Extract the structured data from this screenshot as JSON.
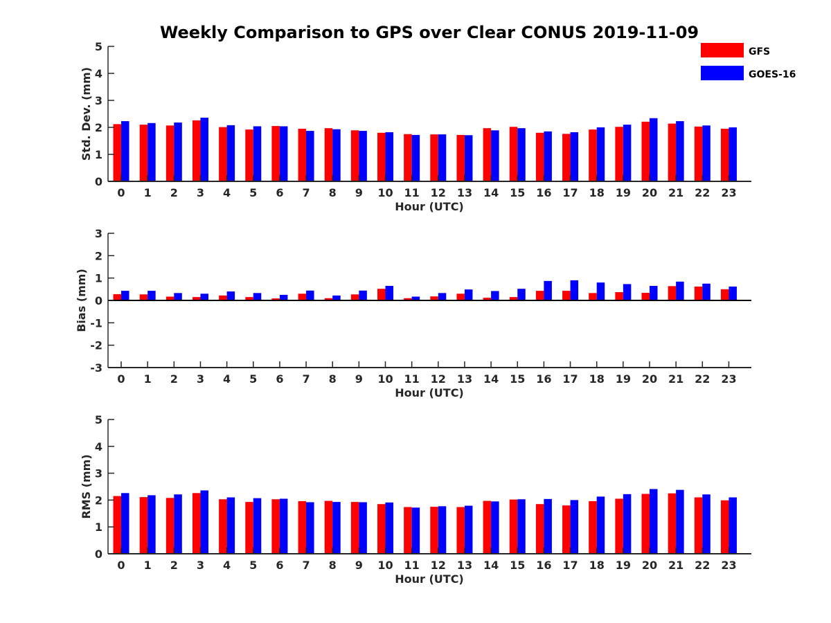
{
  "title": "Weekly Comparison to GPS over Clear CONUS 2019-11-09",
  "legend": [
    {
      "name": "GFS",
      "color": "#ff0000"
    },
    {
      "name": "GOES-16",
      "color": "#0000ff"
    }
  ],
  "chart_data": [
    {
      "type": "bar",
      "title": "Weekly Comparison to GPS over Clear CONUS 2019-11-09",
      "xlabel": "Hour (UTC)",
      "ylabel": "Std. Dev. (mm)",
      "ylim": [
        0,
        5
      ],
      "yticks": [
        0,
        1,
        2,
        3,
        4,
        5
      ],
      "categories": [
        "0",
        "1",
        "2",
        "3",
        "4",
        "5",
        "6",
        "7",
        "8",
        "9",
        "10",
        "11",
        "12",
        "13",
        "14",
        "15",
        "16",
        "17",
        "18",
        "19",
        "20",
        "21",
        "22",
        "23"
      ],
      "series": [
        {
          "name": "GFS",
          "color": "#ff0000",
          "values": [
            2.12,
            2.1,
            2.07,
            2.26,
            2.01,
            1.92,
            2.05,
            1.95,
            1.97,
            1.89,
            1.8,
            1.75,
            1.74,
            1.72,
            1.97,
            2.02,
            1.8,
            1.76,
            1.92,
            2.02,
            2.21,
            2.14,
            2.03,
            1.95
          ]
        },
        {
          "name": "GOES-16",
          "color": "#0000ff",
          "values": [
            2.23,
            2.16,
            2.18,
            2.36,
            2.08,
            2.04,
            2.04,
            1.87,
            1.93,
            1.87,
            1.82,
            1.72,
            1.74,
            1.71,
            1.89,
            1.97,
            1.85,
            1.82,
            2.0,
            2.1,
            2.34,
            2.23,
            2.07,
            2.0
          ]
        }
      ]
    },
    {
      "type": "bar",
      "title": "",
      "xlabel": "Hour (UTC)",
      "ylabel": "Bias (mm)",
      "ylim": [
        -3,
        3
      ],
      "yticks": [
        -3,
        -2,
        -1,
        0,
        1,
        2,
        3
      ],
      "categories": [
        "0",
        "1",
        "2",
        "3",
        "4",
        "5",
        "6",
        "7",
        "8",
        "9",
        "10",
        "11",
        "12",
        "13",
        "14",
        "15",
        "16",
        "17",
        "18",
        "19",
        "20",
        "21",
        "22",
        "23"
      ],
      "series": [
        {
          "name": "GFS",
          "color": "#ff0000",
          "values": [
            0.28,
            0.27,
            0.17,
            0.15,
            0.22,
            0.15,
            0.09,
            0.3,
            0.1,
            0.27,
            0.52,
            0.1,
            0.18,
            0.3,
            0.12,
            0.15,
            0.43,
            0.43,
            0.33,
            0.37,
            0.34,
            0.64,
            0.62,
            0.5
          ]
        },
        {
          "name": "GOES-16",
          "color": "#0000ff",
          "values": [
            0.43,
            0.43,
            0.33,
            0.3,
            0.4,
            0.33,
            0.25,
            0.44,
            0.22,
            0.44,
            0.65,
            0.17,
            0.33,
            0.49,
            0.42,
            0.52,
            0.87,
            0.9,
            0.8,
            0.73,
            0.65,
            0.84,
            0.75,
            0.62
          ]
        }
      ]
    },
    {
      "type": "bar",
      "title": "",
      "xlabel": "Hour (UTC)",
      "ylabel": "RMS (mm)",
      "ylim": [
        0,
        5
      ],
      "yticks": [
        0,
        1,
        2,
        3,
        4,
        5
      ],
      "categories": [
        "0",
        "1",
        "2",
        "3",
        "4",
        "5",
        "6",
        "7",
        "8",
        "9",
        "10",
        "11",
        "12",
        "13",
        "14",
        "15",
        "16",
        "17",
        "18",
        "19",
        "20",
        "21",
        "22",
        "23"
      ],
      "series": [
        {
          "name": "GFS",
          "color": "#ff0000",
          "values": [
            2.15,
            2.11,
            2.08,
            2.26,
            2.03,
            1.93,
            2.03,
            1.96,
            1.97,
            1.93,
            1.85,
            1.74,
            1.75,
            1.74,
            1.97,
            2.02,
            1.85,
            1.8,
            1.96,
            2.05,
            2.23,
            2.25,
            2.1,
            1.99
          ]
        },
        {
          "name": "GOES-16",
          "color": "#0000ff",
          "values": [
            2.26,
            2.18,
            2.21,
            2.36,
            2.1,
            2.07,
            2.05,
            1.92,
            1.93,
            1.92,
            1.91,
            1.72,
            1.77,
            1.79,
            1.95,
            2.03,
            2.04,
            2.0,
            2.13,
            2.22,
            2.41,
            2.38,
            2.21,
            2.1
          ]
        }
      ]
    }
  ]
}
